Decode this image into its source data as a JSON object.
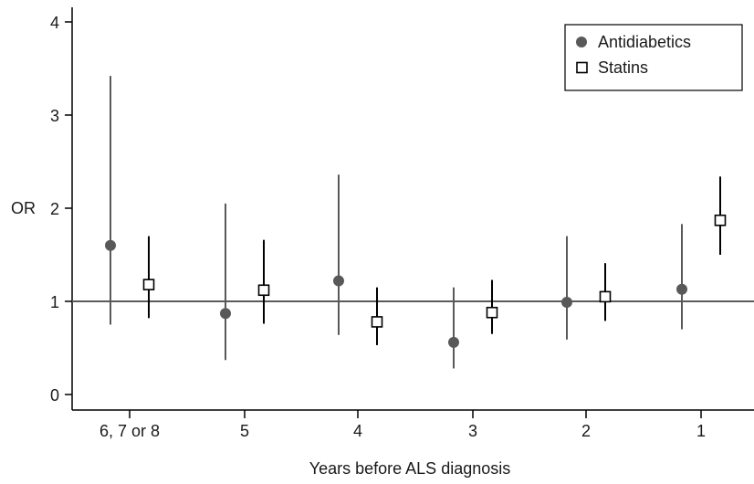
{
  "chart_data": {
    "type": "scatter",
    "xlabel": "Years before ALS diagnosis",
    "ylabel": "OR",
    "categories": [
      "6, 7 or 8",
      "5",
      "4",
      "3",
      "2",
      "1"
    ],
    "ylim": [
      0,
      4
    ],
    "y_ticks": [
      "0",
      "1",
      "2",
      "3",
      "4"
    ],
    "reference_line": 1,
    "grid": false,
    "legend_position": "top-right",
    "series": [
      {
        "name": "Antidiabetics",
        "marker": "filled-circle",
        "color": "#595959",
        "values": [
          1.6,
          0.87,
          1.22,
          0.56,
          0.99,
          1.13
        ],
        "lower": [
          0.75,
          0.37,
          0.64,
          0.28,
          0.59,
          0.7
        ],
        "upper": [
          3.42,
          2.05,
          2.36,
          1.15,
          1.7,
          1.83
        ]
      },
      {
        "name": "Statins",
        "marker": "open-square",
        "color": "#000000",
        "values": [
          1.18,
          1.12,
          0.78,
          0.88,
          1.05,
          1.87
        ],
        "lower": [
          0.82,
          0.76,
          0.53,
          0.65,
          0.79,
          1.5
        ],
        "upper": [
          1.7,
          1.66,
          1.15,
          1.23,
          1.41,
          2.34
        ]
      }
    ]
  }
}
